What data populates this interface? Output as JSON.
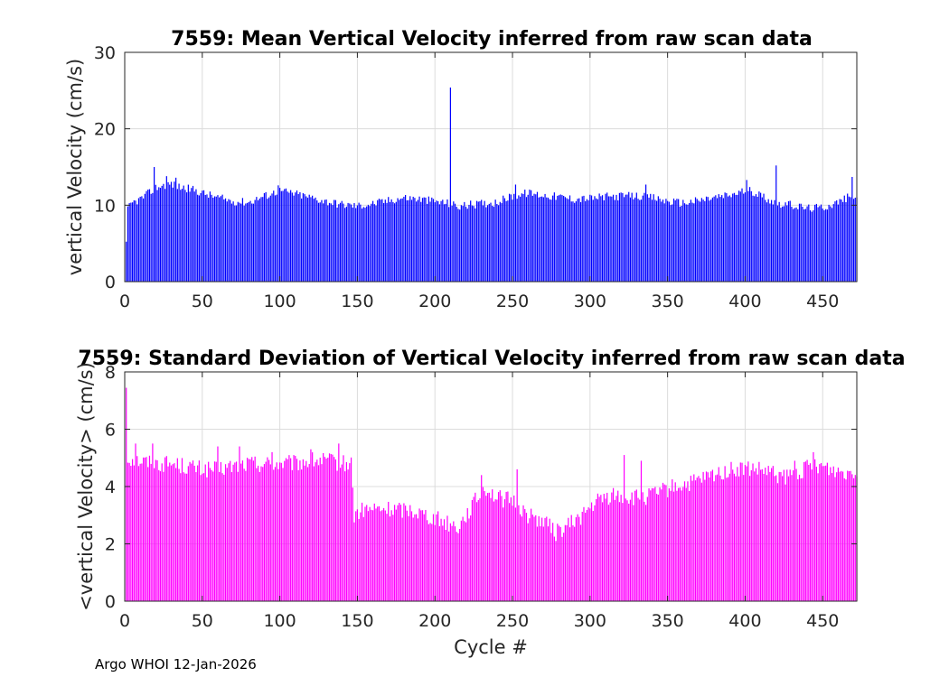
{
  "footer": "Argo WHOI 12-Jan-2026",
  "colors": {
    "top_series": "#0000ff",
    "bottom_series": "#ff00ff",
    "grid": "#dcdcdc",
    "axis": "#262626"
  },
  "chart_data": [
    {
      "type": "bar",
      "title": "7559: Mean Vertical Velocity inferred from raw scan data",
      "xlabel": "",
      "ylabel": "vertical Velocity (cm/s)",
      "xlim": [
        0,
        472
      ],
      "ylim": [
        0,
        30
      ],
      "xticks": [
        0,
        50,
        100,
        150,
        200,
        250,
        300,
        350,
        400,
        450
      ],
      "yticks": [
        0,
        10,
        20,
        30
      ],
      "grid": true,
      "series_name": "mean vertical velocity",
      "anchors": [
        [
          1,
          4.8
        ],
        [
          2,
          9.5
        ],
        [
          5,
          10.3
        ],
        [
          10,
          10.8
        ],
        [
          15,
          11.5
        ],
        [
          18,
          12.0
        ],
        [
          20,
          12.3
        ],
        [
          25,
          12.6
        ],
        [
          30,
          12.8
        ],
        [
          35,
          12.4
        ],
        [
          40,
          12.2
        ],
        [
          45,
          12.0
        ],
        [
          50,
          11.6
        ],
        [
          60,
          11.0
        ],
        [
          70,
          10.5
        ],
        [
          80,
          10.4
        ],
        [
          90,
          11.2
        ],
        [
          100,
          11.9
        ],
        [
          110,
          11.5
        ],
        [
          120,
          11.0
        ],
        [
          130,
          10.5
        ],
        [
          140,
          10.1
        ],
        [
          150,
          9.9
        ],
        [
          160,
          10.2
        ],
        [
          170,
          10.6
        ],
        [
          180,
          11.0
        ],
        [
          190,
          10.8
        ],
        [
          200,
          10.5
        ],
        [
          210,
          10.2
        ],
        [
          215,
          9.8
        ],
        [
          220,
          10.0
        ],
        [
          230,
          10.2
        ],
        [
          240,
          10.4
        ],
        [
          250,
          11.2
        ],
        [
          260,
          11.6
        ],
        [
          270,
          11.3
        ],
        [
          280,
          11.1
        ],
        [
          290,
          10.8
        ],
        [
          300,
          10.9
        ],
        [
          310,
          11.1
        ],
        [
          320,
          11.2
        ],
        [
          330,
          11.2
        ],
        [
          340,
          11.0
        ],
        [
          350,
          10.5
        ],
        [
          360,
          10.3
        ],
        [
          370,
          10.6
        ],
        [
          380,
          11.0
        ],
        [
          390,
          11.3
        ],
        [
          400,
          11.9
        ],
        [
          405,
          11.8
        ],
        [
          410,
          11.3
        ],
        [
          420,
          10.3
        ],
        [
          430,
          10.0
        ],
        [
          440,
          9.6
        ],
        [
          450,
          9.7
        ],
        [
          460,
          10.4
        ],
        [
          466,
          11.0
        ],
        [
          472,
          11.4
        ]
      ],
      "spikes": [
        [
          19,
          15.0
        ],
        [
          27,
          13.8
        ],
        [
          33,
          13.6
        ],
        [
          99,
          12.6
        ],
        [
          210,
          25.4
        ],
        [
          252,
          12.7
        ],
        [
          336,
          12.7
        ],
        [
          401,
          13.3
        ],
        [
          420,
          15.2
        ],
        [
          469,
          13.7
        ]
      ],
      "noise": 0.55
    },
    {
      "type": "bar",
      "title": "7559: Standard Deviation of Vertical Velocity inferred from raw scan data",
      "xlabel": "Cycle #",
      "ylabel": "<vertical Velocity> (cm/s)",
      "xlim": [
        0,
        472
      ],
      "ylim": [
        0,
        8
      ],
      "xticks": [
        0,
        50,
        100,
        150,
        200,
        250,
        300,
        350,
        400,
        450
      ],
      "yticks": [
        0,
        2,
        4,
        6,
        8
      ],
      "grid": true,
      "series_name": "std of vertical velocity",
      "anchors": [
        [
          1,
          7.5
        ],
        [
          2,
          5.0
        ],
        [
          10,
          4.9
        ],
        [
          20,
          4.8
        ],
        [
          30,
          4.8
        ],
        [
          40,
          4.7
        ],
        [
          50,
          4.6
        ],
        [
          60,
          4.6
        ],
        [
          70,
          4.7
        ],
        [
          80,
          4.8
        ],
        [
          90,
          4.8
        ],
        [
          100,
          4.8
        ],
        [
          110,
          4.8
        ],
        [
          120,
          4.9
        ],
        [
          130,
          4.9
        ],
        [
          140,
          4.8
        ],
        [
          146,
          4.8
        ],
        [
          148,
          3.0
        ],
        [
          155,
          3.2
        ],
        [
          165,
          3.2
        ],
        [
          175,
          3.2
        ],
        [
          185,
          3.2
        ],
        [
          195,
          3.0
        ],
        [
          205,
          2.8
        ],
        [
          215,
          2.6
        ],
        [
          225,
          3.4
        ],
        [
          232,
          4.0
        ],
        [
          240,
          3.6
        ],
        [
          250,
          3.5
        ],
        [
          260,
          3.0
        ],
        [
          270,
          2.8
        ],
        [
          278,
          2.4
        ],
        [
          285,
          2.6
        ],
        [
          295,
          3.0
        ],
        [
          305,
          3.5
        ],
        [
          315,
          3.7
        ],
        [
          325,
          3.6
        ],
        [
          335,
          3.6
        ],
        [
          345,
          3.8
        ],
        [
          355,
          4.0
        ],
        [
          365,
          4.1
        ],
        [
          375,
          4.3
        ],
        [
          385,
          4.5
        ],
        [
          395,
          4.6
        ],
        [
          405,
          4.6
        ],
        [
          415,
          4.5
        ],
        [
          425,
          4.3
        ],
        [
          435,
          4.5
        ],
        [
          445,
          4.8
        ],
        [
          455,
          4.6
        ],
        [
          465,
          4.5
        ],
        [
          472,
          4.6
        ]
      ],
      "spikes": [
        [
          7,
          5.5
        ],
        [
          18,
          5.5
        ],
        [
          60,
          5.4
        ],
        [
          74,
          5.4
        ],
        [
          95,
          5.2
        ],
        [
          120,
          5.3
        ],
        [
          138,
          5.5
        ],
        [
          230,
          4.4
        ],
        [
          253,
          4.6
        ],
        [
          322,
          5.1
        ],
        [
          333,
          4.9
        ],
        [
          432,
          4.9
        ],
        [
          444,
          5.2
        ]
      ],
      "noise": 0.3
    }
  ]
}
